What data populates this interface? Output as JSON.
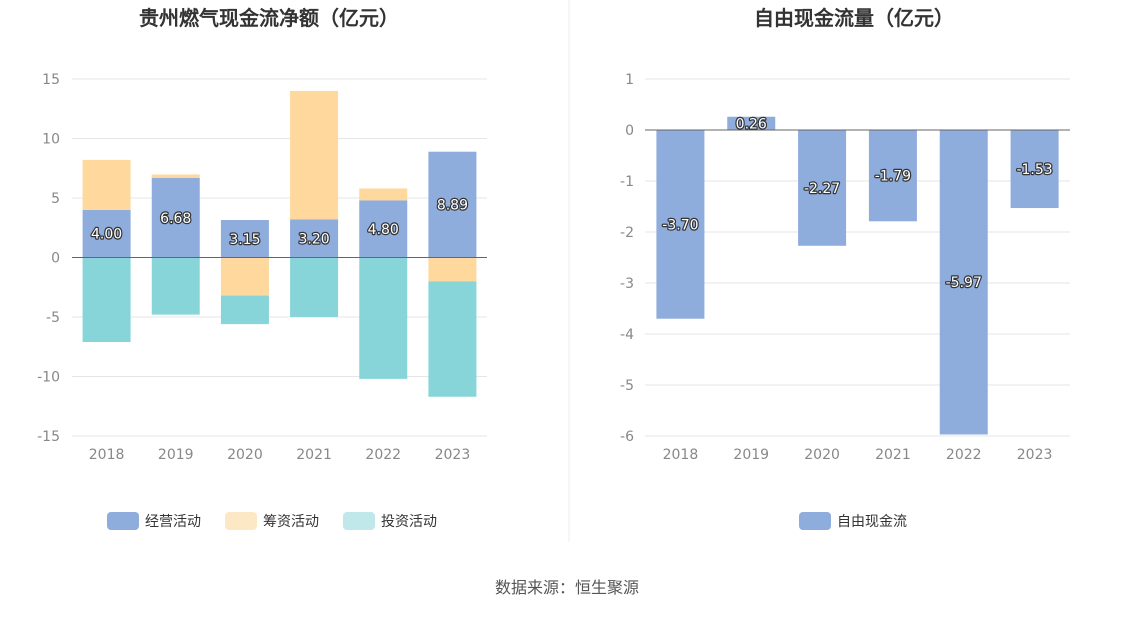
{
  "colors": {
    "operating": "#8eacdc",
    "financing": "#fed89c",
    "investing": "#87d5d9",
    "free_cash": "#8eacdc",
    "grid": "#e6e6e6",
    "axis": "#666666"
  },
  "source_label": "数据来源：恒生聚源",
  "chart_data": [
    {
      "type": "bar",
      "stacked": true,
      "title": "贵州燃气现金流净额（亿元）",
      "categories": [
        "2018",
        "2019",
        "2020",
        "2021",
        "2022",
        "2023"
      ],
      "ylim": [
        -15,
        15
      ],
      "yticks": [
        "15",
        "10",
        "5",
        "0",
        "-5",
        "-10",
        "-15"
      ],
      "ytick_values": [
        15,
        10,
        5,
        0,
        -5,
        -10,
        -15
      ],
      "grid": true,
      "legend_position": "bottom",
      "series": [
        {
          "name": "经营活动",
          "color_key": "operating",
          "values": [
            4.0,
            6.68,
            3.15,
            3.2,
            4.8,
            8.89
          ],
          "labels": [
            "4.00",
            "6.68",
            "3.15",
            "3.20",
            "4.80",
            "8.89"
          ]
        },
        {
          "name": "筹资活动",
          "color_key": "financing",
          "values": [
            4.2,
            0.3,
            -3.2,
            10.8,
            1.0,
            -2.0
          ]
        },
        {
          "name": "投资活动",
          "color_key": "investing",
          "values": [
            -7.1,
            -4.8,
            -2.4,
            -5.0,
            -10.2,
            -9.7
          ]
        }
      ]
    },
    {
      "type": "bar",
      "title": "自由现金流量（亿元）",
      "categories": [
        "2018",
        "2019",
        "2020",
        "2021",
        "2022",
        "2023"
      ],
      "ylim": [
        -6,
        1
      ],
      "yticks": [
        "1",
        "0",
        "-1",
        "-2",
        "-3",
        "-4",
        "-5",
        "-6"
      ],
      "ytick_values": [
        1,
        0,
        -1,
        -2,
        -3,
        -4,
        -5,
        -6
      ],
      "grid": true,
      "legend_position": "bottom",
      "series": [
        {
          "name": "自由现金流",
          "color_key": "free_cash",
          "values": [
            -3.7,
            0.26,
            -2.27,
            -1.79,
            -5.97,
            -1.53
          ],
          "labels": [
            "-3.70",
            "0.26",
            "-2.27",
            "-1.79",
            "-5.97",
            "-1.53"
          ]
        }
      ]
    }
  ]
}
